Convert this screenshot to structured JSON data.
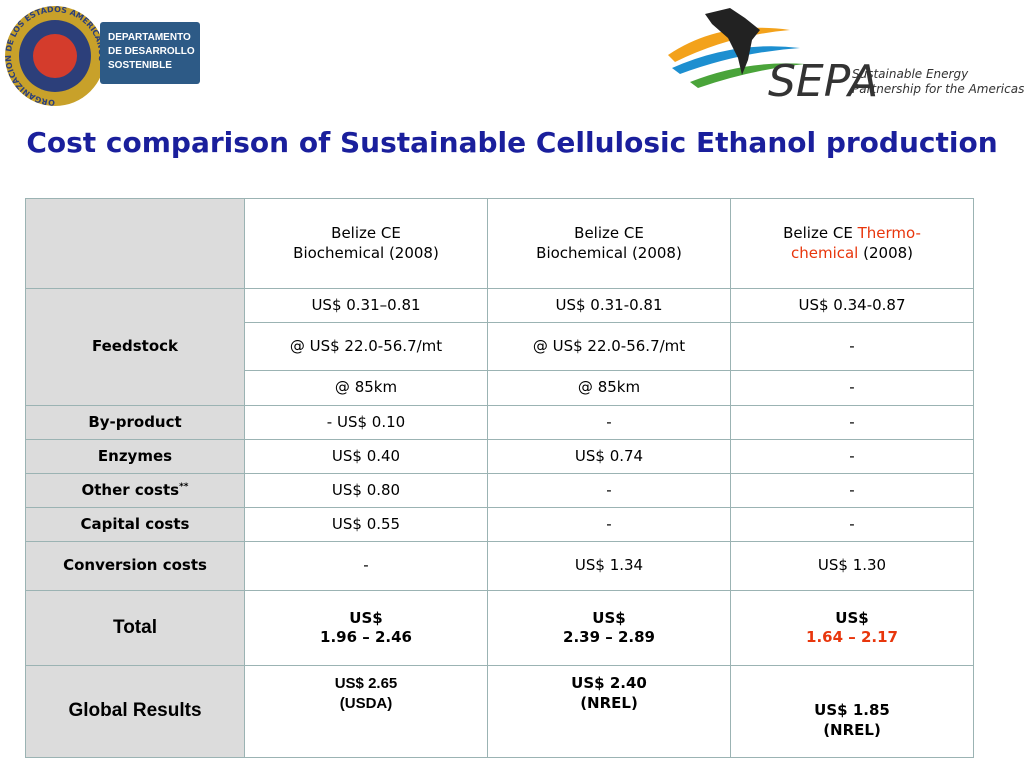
{
  "logos": {
    "oas_ring": "ORGANIZACION DE LOS ESTADOS AMERICANOS",
    "dept": [
      "DEPARTAMENTO",
      "DE DESARROLLO",
      "SOSTENIBLE"
    ],
    "sepa": "SEPA",
    "sepa_tagline": [
      "Sustainable Energy",
      "Partnership for the Americas"
    ]
  },
  "title": "Cost comparison of Sustainable Cellulosic Ethanol production",
  "table": {
    "columns": [
      {
        "line1": "Belize CE",
        "line2": "Biochemical (2008)"
      },
      {
        "line1": "Belize CE",
        "line2": "Biochemical (2008)"
      },
      {
        "line1": "Belize CE",
        "highlight": "Thermo-chemical",
        "line2": "(2008)"
      }
    ],
    "feedstock": {
      "label": "Feedstock",
      "subrows": [
        [
          "US$ 0.31–0.81",
          "US$ 0.31-0.81",
          "US$ 0.34-0.87"
        ],
        [
          "@ US$ 22.0-56.7/mt",
          "@ US$ 22.0-56.7/mt",
          "-"
        ],
        [
          "@ 85km",
          "@ 85km",
          "-"
        ]
      ]
    },
    "rows": [
      {
        "label": "By-product",
        "cells": [
          "- US$ 0.10",
          "-",
          "-"
        ]
      },
      {
        "label": "Enzymes",
        "cells": [
          "US$ 0.40",
          "US$ 0.74",
          "-"
        ]
      },
      {
        "label": "Other costs",
        "note": "**",
        "cells": [
          "US$ 0.80",
          "-",
          "-"
        ]
      },
      {
        "label": "Capital costs",
        "cells": [
          "US$ 0.55",
          "-",
          "-"
        ]
      },
      {
        "label": "Conversion costs",
        "cells": [
          "-",
          "US$ 1.34",
          "US$ 1.30"
        ]
      }
    ],
    "total": {
      "label": "Total",
      "cells": [
        {
          "currency": "US$",
          "range": "1.96 – 2.46"
        },
        {
          "currency": "US$",
          "range": "2.39 – 2.89"
        },
        {
          "currency": "US$",
          "range": "1.64 – 2.17"
        }
      ]
    },
    "global": {
      "label": "Global Results",
      "cells": [
        {
          "amount": "US$ 2.65",
          "source": "(USDA)"
        },
        {
          "amount": "US$ 2.40",
          "source": "(NREL)"
        },
        {
          "amount": "US$ 1.85",
          "source": "(NREL)"
        }
      ]
    }
  }
}
